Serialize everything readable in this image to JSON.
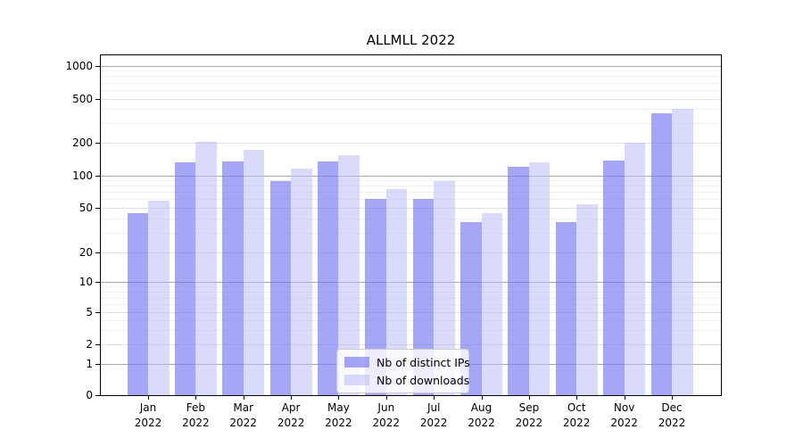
{
  "title": "ALLMLL 2022",
  "chart_data": {
    "type": "bar",
    "title": "ALLMLL 2022",
    "categories": [
      "Jan 2022",
      "Feb 2022",
      "Mar 2022",
      "Apr 2022",
      "May 2022",
      "Jun 2022",
      "Jul 2022",
      "Aug 2022",
      "Sep 2022",
      "Oct 2022",
      "Nov 2022",
      "Dec 2022"
    ],
    "series": [
      {
        "name": "Nb of distinct IPs",
        "color": "#a6a6f6",
        "fill_rgba": "rgba(120,120,242,0.66)",
        "values": [
          45,
          132,
          134,
          89,
          135,
          60,
          61,
          37,
          120,
          37,
          137,
          370
        ]
      },
      {
        "name": "Nb of downloads",
        "color": "#dadafb",
        "fill_rgba": "rgba(184,184,247,0.52)",
        "values": [
          58,
          203,
          172,
          115,
          152,
          75,
          88,
          45,
          132,
          54,
          198,
          400
        ]
      }
    ],
    "yscale": "symlog",
    "yticks": [
      0,
      1,
      2,
      5,
      10,
      20,
      50,
      100,
      200,
      500,
      1000
    ],
    "ylim": [
      0,
      1250
    ],
    "grid": "on",
    "legend_position": "lower-center"
  },
  "colors": {
    "decade_gridline": "#a9a9a9",
    "major_gridline": "#e0e0e0",
    "minor_gridline": "#f0f0f0",
    "axis": "#000000",
    "legend_border": "#cccccc"
  }
}
